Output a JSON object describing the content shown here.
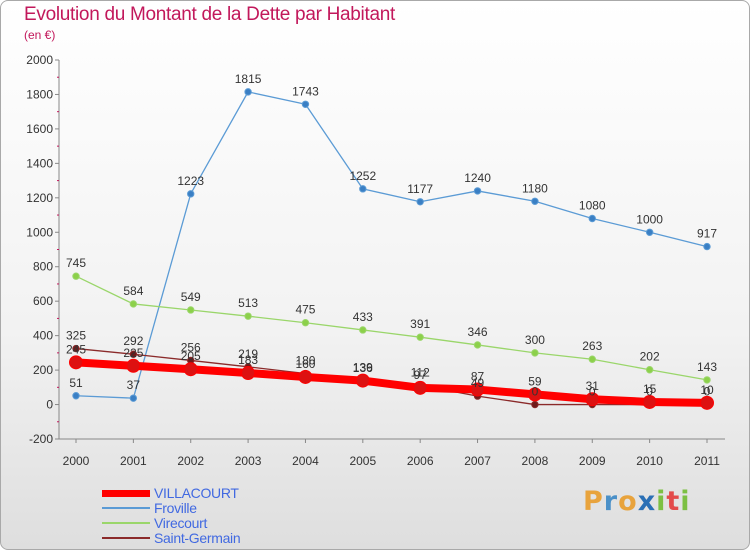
{
  "header": {
    "title": "Evolution du Montant de la Dette par Habitant",
    "subtitle": "(en €)"
  },
  "logo": {
    "letters": [
      {
        "ch": "P",
        "color": "#e8a33c"
      },
      {
        "ch": "r",
        "color": "#4a90c8"
      },
      {
        "ch": "o",
        "color": "#e8a33c"
      },
      {
        "ch": "x",
        "color": "#2a6fb5"
      },
      {
        "ch": "i",
        "color": "#7cc043"
      },
      {
        "ch": "t",
        "color": "#e34b4b"
      },
      {
        "ch": "i",
        "color": "#7cc043"
      }
    ]
  },
  "chart_data": {
    "type": "line",
    "x": [
      "2000",
      "2001",
      "2002",
      "2003",
      "2004",
      "2005",
      "2006",
      "2007",
      "2008",
      "2009",
      "2010",
      "2011"
    ],
    "ylim": [
      -200,
      2000
    ],
    "yticks": [
      "-200",
      "0",
      "200",
      "400",
      "600",
      "800",
      "1000",
      "1200",
      "1400",
      "1600",
      "1800",
      "2000"
    ],
    "grid": false,
    "legend_position": "bottom-left",
    "series": [
      {
        "name": "Froville",
        "color": "#5b9bd5",
        "legend_color": "#4169e1",
        "marker_color": "#3a7fc4",
        "values": [
          51,
          37,
          1223,
          1815,
          1743,
          1252,
          1177,
          1240,
          1180,
          1080,
          1000,
          917
        ],
        "labels": [
          "51",
          "37",
          "1223",
          "1815",
          "1743",
          "1252",
          "1177",
          "1240",
          "1180",
          "1080",
          "1000",
          "917"
        ]
      },
      {
        "name": "Virecourt",
        "color": "#9ad66a",
        "legend_color": "#4169e1",
        "marker_color": "#8cd04a",
        "values": [
          745,
          584,
          549,
          513,
          475,
          433,
          391,
          346,
          300,
          263,
          202,
          143
        ],
        "labels": [
          "745",
          "584",
          "549",
          "513",
          "475",
          "433",
          "391",
          "346",
          "300",
          "263",
          "202",
          "143"
        ]
      },
      {
        "name": "Saint-Germain",
        "color": "#8b2a2a",
        "legend_color": "#4169e1",
        "marker_color": "#6e1a1a",
        "values": [
          325,
          292,
          256,
          219,
          180,
          136,
          112,
          49,
          0,
          0,
          0,
          0
        ],
        "labels": [
          "325",
          "292",
          "256",
          "219",
          "180",
          "136",
          "112",
          "49",
          "0",
          "0",
          "0",
          "0"
        ]
      },
      {
        "name": "VILLACOURT",
        "color": "#ff0000",
        "legend_color": "#4169e1",
        "marker_color": "#dd1111",
        "values": [
          245,
          225,
          205,
          183,
          160,
          139,
          97,
          87,
          59,
          31,
          15,
          10
        ],
        "labels": [
          "245",
          "225",
          "205",
          "183",
          "160",
          "139",
          "97",
          "87",
          "59",
          "31",
          "15",
          "10"
        ]
      }
    ],
    "legend_order": [
      "VILLACOURT",
      "Froville",
      "Virecourt",
      "Saint-Germain"
    ]
  }
}
